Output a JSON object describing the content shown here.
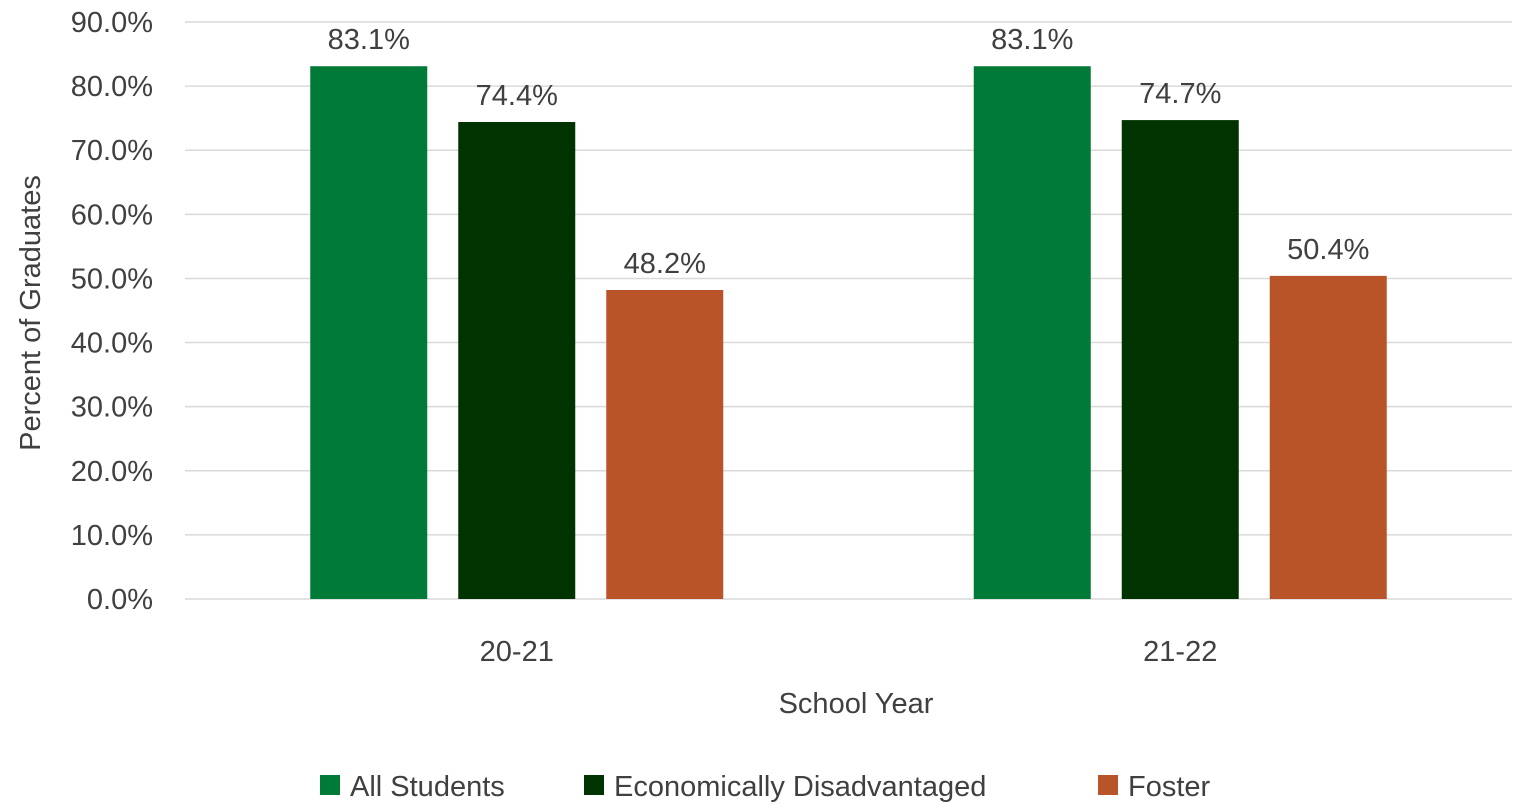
{
  "chart_data": {
    "type": "bar",
    "title": "",
    "xlabel": "School Year",
    "ylabel": "Percent of Graduates",
    "categories": [
      "20-21",
      "21-22"
    ],
    "series": [
      {
        "name": "All Students",
        "values": [
          83.1,
          83.1
        ],
        "labels": [
          "83.1%",
          "83.1%"
        ],
        "color": "#007A37"
      },
      {
        "name": "Economically Disadvantaged",
        "values": [
          74.4,
          74.7
        ],
        "labels": [
          "74.4%",
          "74.7%"
        ],
        "color": "#013300"
      },
      {
        "name": "Foster",
        "values": [
          48.2,
          50.4
        ],
        "labels": [
          "48.2%",
          "50.4%"
        ],
        "color": "#B85428"
      }
    ],
    "ylim": [
      0,
      90
    ],
    "yticks": [
      0,
      10,
      20,
      30,
      40,
      50,
      60,
      70,
      80,
      90
    ],
    "ytick_labels": [
      "0.0%",
      "10.0%",
      "20.0%",
      "30.0%",
      "40.0%",
      "50.0%",
      "60.0%",
      "70.0%",
      "80.0%",
      "90.0%"
    ],
    "grid": true,
    "legend_position": "bottom"
  }
}
